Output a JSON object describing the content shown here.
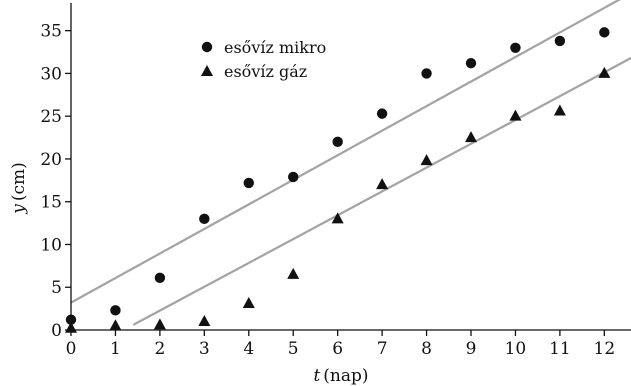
{
  "chart_data": {
    "type": "scatter",
    "title": "",
    "xlabel": "t (nap)",
    "xlabel_var": "t",
    "xlabel_unit": "(nap)",
    "ylabel": "y (cm)",
    "ylabel_var": "y",
    "ylabel_unit": "(cm)",
    "xlim": [
      0,
      12.6
    ],
    "ylim": [
      0,
      38
    ],
    "xticks": [
      0,
      1,
      2,
      3,
      4,
      5,
      6,
      7,
      8,
      9,
      10,
      11,
      12
    ],
    "xtick_labels": [
      "0",
      "1",
      "2",
      "3",
      "4",
      "5",
      "6",
      "7",
      "8",
      "9",
      "10",
      "11",
      "12"
    ],
    "yticks": [
      0,
      5,
      10,
      15,
      20,
      25,
      30,
      35
    ],
    "ytick_labels": [
      "0",
      "5",
      "10",
      "15",
      "20",
      "25",
      "30",
      "35"
    ],
    "grid": false,
    "legend_position": "top-left",
    "series": [
      {
        "name": "esővíz mikro",
        "marker": "circle",
        "color": "#111111",
        "x": [
          0,
          1,
          2,
          3,
          4,
          5,
          6,
          7,
          8,
          9,
          10,
          11,
          12
        ],
        "y": [
          1.2,
          2.3,
          6.1,
          13,
          17.2,
          17.9,
          22,
          25.3,
          30,
          31.2,
          33,
          33.8,
          34.8
        ]
      },
      {
        "name": "esővíz gáz",
        "marker": "triangle",
        "color": "#111111",
        "x": [
          0,
          1,
          2,
          3,
          4,
          5,
          6,
          7,
          8,
          9,
          10,
          11,
          12
        ],
        "y": [
          0.2,
          0.5,
          0.6,
          1,
          3.1,
          6.5,
          13,
          17,
          19.8,
          22.5,
          25,
          25.6,
          30
        ]
      }
    ],
    "trendlines": [
      {
        "color": "#a3a3a3",
        "x": [
          0,
          12.5
        ],
        "y": [
          3.2,
          39.1
        ]
      },
      {
        "color": "#a3a3a3",
        "x": [
          1.4,
          12.6
        ],
        "y": [
          0.6,
          31.8
        ]
      }
    ]
  }
}
